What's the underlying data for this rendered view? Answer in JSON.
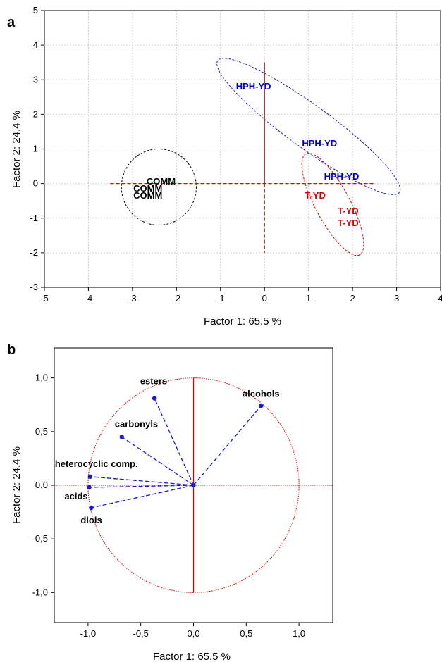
{
  "chart_data": [
    {
      "panel": "a",
      "type": "scatter",
      "xlabel": "Factor 1: 65.5 %",
      "ylabel": "Factor 2: 24.4 %",
      "xlim": [
        -5,
        4
      ],
      "ylim": [
        -3,
        5
      ],
      "xticks": [
        "-5",
        "-4",
        "-3",
        "-2",
        "-1",
        "0",
        "1",
        "2",
        "3",
        "4"
      ],
      "yticks": [
        "-3",
        "-2",
        "-1",
        "0",
        "1",
        "2",
        "3",
        "4",
        "5"
      ],
      "grid": true,
      "points": [
        {
          "label": "COMM",
          "x": -2.35,
          "y": 0.05,
          "color": "#000000"
        },
        {
          "label": "COMM",
          "x": -2.65,
          "y": -0.15,
          "color": "#000000"
        },
        {
          "label": "COMM",
          "x": -2.65,
          "y": -0.35,
          "color": "#000000"
        },
        {
          "label": "HPH-YD",
          "x": -0.25,
          "y": 2.8,
          "color": "#0000cc"
        },
        {
          "label": "HPH-YD",
          "x": 1.25,
          "y": 1.15,
          "color": "#0000cc"
        },
        {
          "label": "HPH-YD",
          "x": 1.75,
          "y": 0.2,
          "color": "#0000cc"
        },
        {
          "label": "T-YD",
          "x": 1.15,
          "y": -0.35,
          "color": "#dd0000"
        },
        {
          "label": "T-YD",
          "x": 1.9,
          "y": -0.8,
          "color": "#dd0000"
        },
        {
          "label": "T-YD",
          "x": 1.9,
          "y": -1.15,
          "color": "#dd0000"
        }
      ]
    },
    {
      "panel": "b",
      "type": "scatter",
      "xlabel": "Factor 1: 65.5 %",
      "ylabel": "Factor 2: 24.4 %",
      "xlim": [
        -1.32,
        1.32
      ],
      "ylim": [
        -1.28,
        1.28
      ],
      "xticks": [
        "-1,0",
        "-0,5",
        "0,0",
        "0,5",
        "1,0"
      ],
      "yticks": [
        "1,0",
        "0,5",
        "0,0",
        "-0,5",
        "-1,0"
      ],
      "grid": false,
      "unit_circle": true,
      "loadings": [
        {
          "label": "esters",
          "x": -0.37,
          "y": 0.81
        },
        {
          "label": "alcohols",
          "x": 0.64,
          "y": 0.74
        },
        {
          "label": "carbonyls",
          "x": -0.68,
          "y": 0.45
        },
        {
          "label": "heterocyclic comp.",
          "x": -0.98,
          "y": 0.08
        },
        {
          "label": "acids",
          "x": -0.99,
          "y": -0.02
        },
        {
          "label": "diols",
          "x": -0.97,
          "y": -0.21
        }
      ]
    }
  ]
}
